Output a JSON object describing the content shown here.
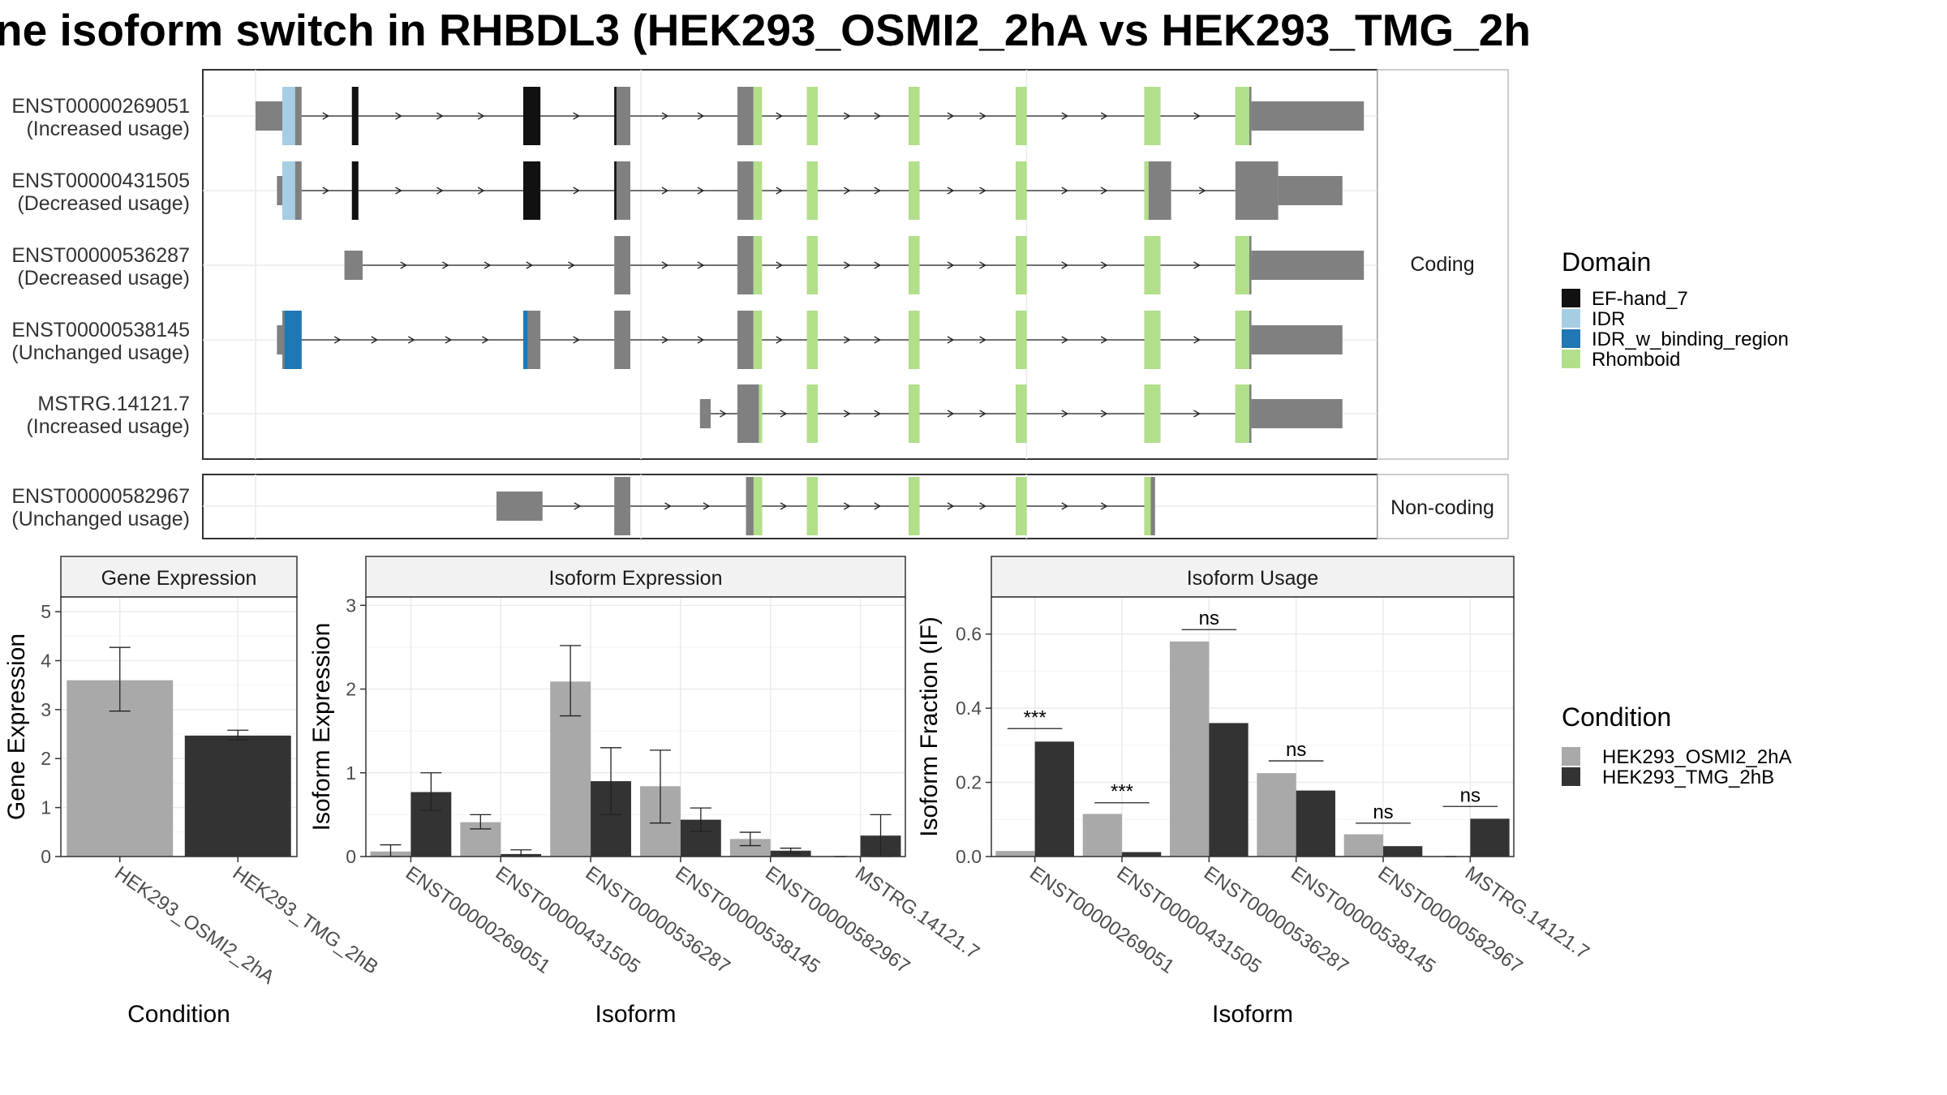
{
  "title": "ne isoform switch in RHBDL3 (HEK293_OSMI2_2hA vs HEK293_TMG_2h",
  "colors": {
    "domains": {
      "EF-hand_7": "#111111",
      "IDR": "#a6cee3",
      "IDR_w_binding_region": "#1f78b4",
      "Rhomboid": "#b2df8a"
    },
    "exon": "#808080",
    "conditions": [
      "#a9a9a9",
      "#333333"
    ]
  },
  "structure_panels": {
    "coding_label": "Coding",
    "noncoding_label": "Non-coding"
  },
  "transcripts": [
    {
      "id": "ENST00000269051",
      "usage": "(Increased usage)",
      "group": "coding",
      "exons": [
        [
          0,
          2.5,
          "s"
        ],
        [
          2.5,
          4.3,
          "t"
        ],
        [
          9,
          9.6,
          "t"
        ],
        [
          25,
          26.6,
          "t"
        ],
        [
          33.5,
          35,
          "t"
        ],
        [
          45,
          46.5,
          "t"
        ],
        [
          51.5,
          52.5,
          "t"
        ],
        [
          61,
          62,
          "t"
        ],
        [
          71,
          72,
          "t"
        ],
        [
          83,
          84.5,
          "t"
        ],
        [
          91.5,
          93,
          "t"
        ],
        [
          93,
          103.5,
          "s"
        ]
      ],
      "domains": [
        [
          2.5,
          3.7,
          "IDR"
        ],
        [
          9,
          9.6,
          "EF-hand_7"
        ],
        [
          25,
          26.6,
          "EF-hand_7"
        ],
        [
          33.5,
          33.7,
          "EF-hand_7"
        ],
        [
          46.5,
          47.3,
          "Rhomboid"
        ],
        [
          51.5,
          52.5,
          "Rhomboid"
        ],
        [
          61,
          62,
          "Rhomboid"
        ],
        [
          71,
          72,
          "Rhomboid"
        ],
        [
          83,
          84.5,
          "Rhomboid"
        ],
        [
          91.5,
          92.8,
          "Rhomboid"
        ]
      ]
    },
    {
      "id": "ENST00000431505",
      "usage": "(Decreased usage)",
      "group": "coding",
      "exons": [
        [
          2,
          2.5,
          "s"
        ],
        [
          2.5,
          4.3,
          "t"
        ],
        [
          9,
          9.6,
          "t"
        ],
        [
          25,
          26.6,
          "t"
        ],
        [
          33.5,
          35,
          "t"
        ],
        [
          45,
          46.5,
          "t"
        ],
        [
          51.5,
          52.5,
          "t"
        ],
        [
          61,
          62,
          "t"
        ],
        [
          71,
          72,
          "t"
        ],
        [
          83,
          85.5,
          "t"
        ],
        [
          91.5,
          95.5,
          "t"
        ],
        [
          95.5,
          101.5,
          "s"
        ]
      ],
      "domains": [
        [
          2.5,
          3.7,
          "IDR"
        ],
        [
          9,
          9.6,
          "EF-hand_7"
        ],
        [
          25,
          26.6,
          "EF-hand_7"
        ],
        [
          33.5,
          33.7,
          "EF-hand_7"
        ],
        [
          46.5,
          47.3,
          "Rhomboid"
        ],
        [
          51.5,
          52.5,
          "Rhomboid"
        ],
        [
          61,
          62,
          "Rhomboid"
        ],
        [
          71,
          72,
          "Rhomboid"
        ],
        [
          83,
          83.4,
          "Rhomboid"
        ]
      ]
    },
    {
      "id": "ENST00000536287",
      "usage": "(Decreased usage)",
      "group": "coding",
      "exons": [
        [
          8.3,
          10,
          "s"
        ],
        [
          33.5,
          35,
          "t"
        ],
        [
          45,
          46.5,
          "t"
        ],
        [
          51.5,
          52.5,
          "t"
        ],
        [
          61,
          62,
          "t"
        ],
        [
          71,
          72,
          "t"
        ],
        [
          83,
          84.5,
          "t"
        ],
        [
          91.5,
          93,
          "t"
        ],
        [
          93,
          103.5,
          "s"
        ]
      ],
      "domains": [
        [
          46.5,
          47.3,
          "Rhomboid"
        ],
        [
          51.5,
          52.5,
          "Rhomboid"
        ],
        [
          61,
          62,
          "Rhomboid"
        ],
        [
          71,
          72,
          "Rhomboid"
        ],
        [
          83,
          84.5,
          "Rhomboid"
        ],
        [
          91.5,
          92.8,
          "Rhomboid"
        ]
      ]
    },
    {
      "id": "ENST00000538145",
      "usage": "(Unchanged usage)",
      "group": "coding",
      "exons": [
        [
          2,
          2.5,
          "s"
        ],
        [
          2.5,
          4.3,
          "t"
        ],
        [
          25,
          26.6,
          "t"
        ],
        [
          33.5,
          35,
          "t"
        ],
        [
          45,
          46.5,
          "t"
        ],
        [
          51.5,
          52.5,
          "t"
        ],
        [
          61,
          62,
          "t"
        ],
        [
          71,
          72,
          "t"
        ],
        [
          83,
          84.5,
          "t"
        ],
        [
          91.5,
          93,
          "t"
        ],
        [
          93,
          101.5,
          "s"
        ]
      ],
      "domains": [
        [
          2.7,
          4.3,
          "IDR_w_binding_region"
        ],
        [
          25,
          25.4,
          "IDR_w_binding_region"
        ],
        [
          46.5,
          47.3,
          "Rhomboid"
        ],
        [
          51.5,
          52.5,
          "Rhomboid"
        ],
        [
          61,
          62,
          "Rhomboid"
        ],
        [
          71,
          72,
          "Rhomboid"
        ],
        [
          83,
          84.5,
          "Rhomboid"
        ],
        [
          91.5,
          92.8,
          "Rhomboid"
        ]
      ]
    },
    {
      "id": "MSTRG.14121.7",
      "usage": "(Increased usage)",
      "group": "coding",
      "exons": [
        [
          41.5,
          42.5,
          "s"
        ],
        [
          45,
          47.3,
          "t"
        ],
        [
          51.5,
          52.5,
          "t"
        ],
        [
          61,
          62,
          "t"
        ],
        [
          71,
          72,
          "t"
        ],
        [
          83,
          84.5,
          "t"
        ],
        [
          91.5,
          93,
          "t"
        ],
        [
          93,
          101.5,
          "s"
        ]
      ],
      "domains": [
        [
          47,
          47.3,
          "Rhomboid"
        ],
        [
          51.5,
          52.5,
          "Rhomboid"
        ],
        [
          61,
          62,
          "Rhomboid"
        ],
        [
          71,
          72,
          "Rhomboid"
        ],
        [
          83,
          84.5,
          "Rhomboid"
        ],
        [
          91.5,
          92.8,
          "Rhomboid"
        ]
      ]
    },
    {
      "id": "ENST00000582967",
      "usage": "(Unchanged usage)",
      "group": "noncoding",
      "exons": [
        [
          22.5,
          26.8,
          "s"
        ],
        [
          33.5,
          35,
          "t"
        ],
        [
          45.8,
          47.3,
          "t"
        ],
        [
          51.5,
          52.5,
          "t"
        ],
        [
          61,
          62,
          "t"
        ],
        [
          71,
          72,
          "t"
        ],
        [
          83,
          84,
          "t"
        ]
      ],
      "domains": [
        [
          46.5,
          47.3,
          "Rhomboid"
        ],
        [
          51.5,
          52.5,
          "Rhomboid"
        ],
        [
          61,
          62,
          "Rhomboid"
        ],
        [
          71,
          72,
          "Rhomboid"
        ],
        [
          83,
          83.6,
          "Rhomboid"
        ]
      ]
    }
  ],
  "legends": {
    "domain": {
      "title": "Domain",
      "items": [
        "EF-hand_7",
        "IDR",
        "IDR_w_binding_region",
        "Rhomboid"
      ]
    },
    "condition": {
      "title": "Condition",
      "items": [
        "HEK293_OSMI2_2hA",
        "HEK293_TMG_2hB"
      ]
    }
  },
  "chart_data": [
    {
      "type": "bar",
      "title": "Gene Expression",
      "xlabel": "Condition",
      "ylabel": "Gene Expression",
      "categories": [
        "HEK293_OSMI2_2hA",
        "HEK293_TMG_2hB"
      ],
      "values": [
        3.6,
        2.47
      ],
      "errors": [
        [
          2.97,
          4.27
        ],
        [
          2.38,
          2.58
        ]
      ],
      "ylim": [
        0,
        5.3
      ],
      "yticks": [
        0,
        1,
        2,
        3,
        4,
        5
      ],
      "grid": true
    },
    {
      "type": "bar",
      "title": "Isoform Expression",
      "xlabel": "Isoform",
      "ylabel": "Isoform Expression",
      "categories": [
        "ENST00000269051",
        "ENST00000431505",
        "ENST00000536287",
        "ENST00000538145",
        "ENST00000582967",
        "MSTRG.14121.7"
      ],
      "ylim": [
        0,
        3.1
      ],
      "yticks": [
        0,
        1,
        2,
        3
      ],
      "grid": true,
      "series": [
        {
          "name": "HEK293_OSMI2_2hA",
          "values": [
            0.06,
            0.41,
            2.09,
            0.84,
            0.21,
            0.0
          ],
          "errors": [
            [
              0.0,
              0.14
            ],
            [
              0.33,
              0.5
            ],
            [
              1.68,
              2.52
            ],
            [
              0.4,
              1.27
            ],
            [
              0.13,
              0.29
            ],
            null
          ]
        },
        {
          "name": "HEK293_TMG_2hB",
          "values": [
            0.77,
            0.03,
            0.9,
            0.44,
            0.07,
            0.25
          ],
          "errors": [
            [
              0.55,
              1.0
            ],
            [
              0.0,
              0.08
            ],
            [
              0.5,
              1.3
            ],
            [
              0.3,
              0.58
            ],
            [
              0.04,
              0.1
            ],
            [
              0.0,
              0.5
            ]
          ]
        }
      ]
    },
    {
      "type": "bar",
      "title": "Isoform Usage",
      "xlabel": "Isoform",
      "ylabel": "Isoform Fraction (IF)",
      "categories": [
        "ENST00000269051",
        "ENST00000431505",
        "ENST00000536287",
        "ENST00000538145",
        "ENST00000582967",
        "MSTRG.14121.7"
      ],
      "ylim": [
        0,
        0.7
      ],
      "yticks": [
        0.0,
        0.2,
        0.4,
        0.6
      ],
      "grid": true,
      "series": [
        {
          "name": "HEK293_OSMI2_2hA",
          "values": [
            0.015,
            0.115,
            0.58,
            0.225,
            0.06,
            0.0
          ]
        },
        {
          "name": "HEK293_TMG_2hB",
          "values": [
            0.31,
            0.012,
            0.36,
            0.178,
            0.028,
            0.102
          ]
        }
      ],
      "significance": [
        "***",
        "***",
        "ns",
        "ns",
        "ns",
        "ns"
      ],
      "significance_y": [
        0.345,
        0.145,
        0.612,
        0.258,
        0.09,
        0.135
      ]
    }
  ]
}
